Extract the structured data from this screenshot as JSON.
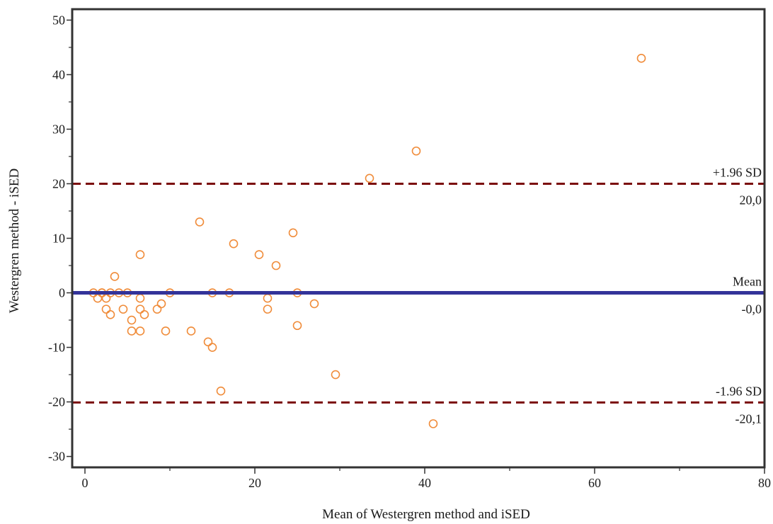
{
  "chart_data": {
    "type": "scatter",
    "title": "",
    "xlabel": "Mean of Westergren method and iSED",
    "ylabel": "Westergren method - iSED",
    "xlim": [
      -1.5,
      80
    ],
    "ylim": [
      -32,
      52
    ],
    "x_ticks": [
      0,
      20,
      40,
      60,
      80
    ],
    "x_minor_ticks": [
      10,
      30,
      50,
      70
    ],
    "y_ticks": [
      -30,
      -20,
      -10,
      0,
      10,
      20,
      30,
      40,
      50
    ],
    "y_minor_ticks": [
      -25,
      -15,
      -5,
      5,
      15,
      25,
      35,
      45
    ],
    "grid": false,
    "marker_color": "#f08c3a",
    "reference_lines": [
      {
        "id": "upper",
        "name": "+1.96 SD",
        "value_label": "20,0",
        "y": 20.0,
        "style": "dashed",
        "color": "#7a0a0a"
      },
      {
        "id": "mean",
        "name": "Mean",
        "value_label": "-0,0",
        "y": 0.0,
        "style": "solid",
        "color": "#333399"
      },
      {
        "id": "lower",
        "name": "-1.96 SD",
        "value_label": "-20,1",
        "y": -20.1,
        "style": "dashed",
        "color": "#7a0a0a"
      }
    ],
    "points": [
      {
        "x": 1,
        "y": 0
      },
      {
        "x": 1.5,
        "y": -1
      },
      {
        "x": 2,
        "y": 0
      },
      {
        "x": 2,
        "y": 0
      },
      {
        "x": 2.5,
        "y": -1
      },
      {
        "x": 2.5,
        "y": -3
      },
      {
        "x": 3,
        "y": 0
      },
      {
        "x": 3,
        "y": -4
      },
      {
        "x": 3.5,
        "y": 3
      },
      {
        "x": 4,
        "y": 0
      },
      {
        "x": 4.5,
        "y": -3
      },
      {
        "x": 5,
        "y": 0
      },
      {
        "x": 5.5,
        "y": -5
      },
      {
        "x": 5.5,
        "y": -7
      },
      {
        "x": 6.5,
        "y": 7
      },
      {
        "x": 6.5,
        "y": -1
      },
      {
        "x": 6.5,
        "y": -3
      },
      {
        "x": 6.5,
        "y": -7
      },
      {
        "x": 7,
        "y": -4
      },
      {
        "x": 8.5,
        "y": -3
      },
      {
        "x": 9,
        "y": -2
      },
      {
        "x": 9.5,
        "y": -7
      },
      {
        "x": 10,
        "y": 0
      },
      {
        "x": 12.5,
        "y": -7
      },
      {
        "x": 13.5,
        "y": 13
      },
      {
        "x": 14.5,
        "y": -9
      },
      {
        "x": 15,
        "y": 0
      },
      {
        "x": 15,
        "y": -10
      },
      {
        "x": 16,
        "y": -18
      },
      {
        "x": 17,
        "y": 0
      },
      {
        "x": 17.5,
        "y": 9
      },
      {
        "x": 20.5,
        "y": 7
      },
      {
        "x": 21.5,
        "y": -1
      },
      {
        "x": 21.5,
        "y": -3
      },
      {
        "x": 22.5,
        "y": 5
      },
      {
        "x": 24.5,
        "y": 11
      },
      {
        "x": 25,
        "y": 0
      },
      {
        "x": 25,
        "y": -6
      },
      {
        "x": 27,
        "y": -2
      },
      {
        "x": 29.5,
        "y": -15
      },
      {
        "x": 33.5,
        "y": 21
      },
      {
        "x": 39,
        "y": 26
      },
      {
        "x": 41,
        "y": -24
      },
      {
        "x": 65.5,
        "y": 43
      }
    ]
  }
}
